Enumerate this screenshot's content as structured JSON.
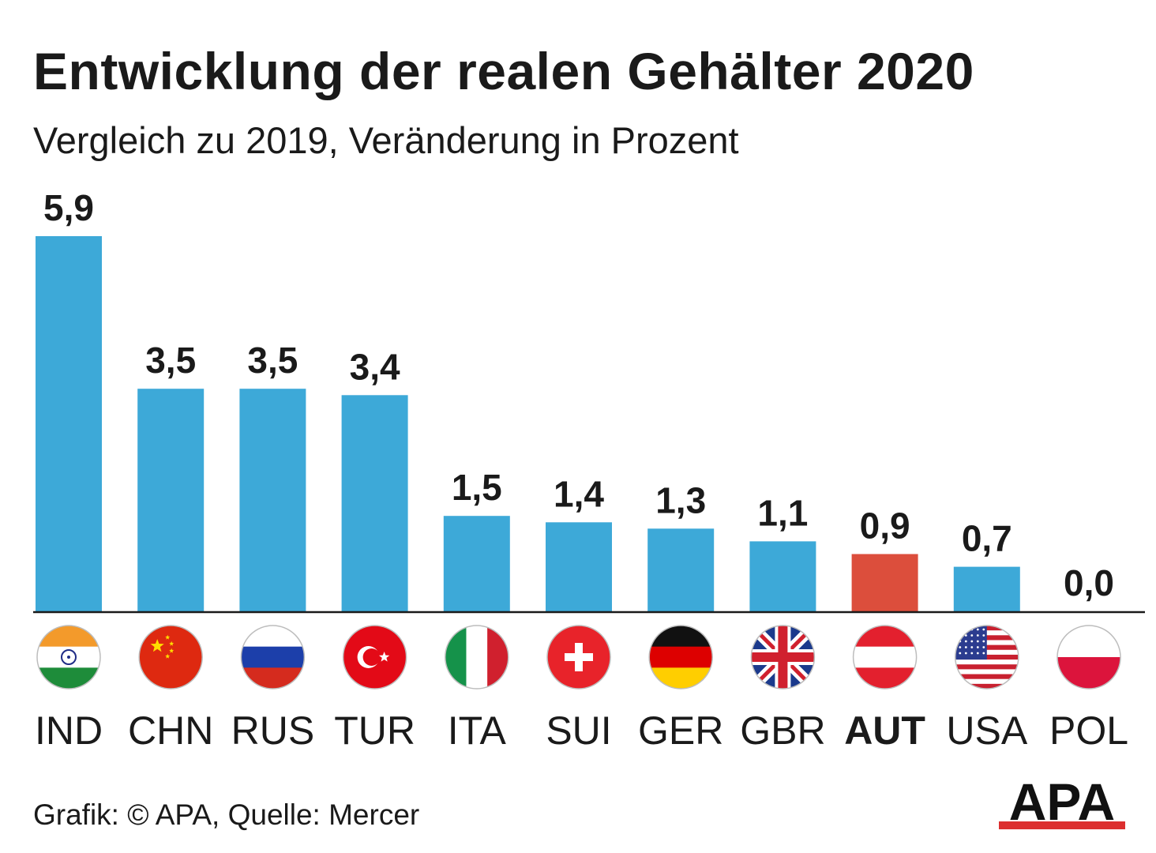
{
  "header": {
    "title": "Entwicklung der realen Gehälter 2020",
    "subtitle": "Vergleich zu 2019, Veränderung in Prozent"
  },
  "chart_data": {
    "type": "bar",
    "title": "Entwicklung der realen Gehälter 2020",
    "subtitle": "Vergleich zu 2019, Veränderung in Prozent",
    "xlabel": "",
    "ylabel": "",
    "ylim": [
      0,
      5.9
    ],
    "grid": false,
    "categories": [
      "IND",
      "CHN",
      "RUS",
      "TUR",
      "ITA",
      "SUI",
      "GER",
      "GBR",
      "AUT",
      "USA",
      "POL"
    ],
    "values": [
      5.9,
      3.5,
      3.5,
      3.4,
      1.5,
      1.4,
      1.3,
      1.1,
      0.9,
      0.7,
      0.0
    ],
    "value_labels": [
      "5,9",
      "3,5",
      "3,5",
      "3,4",
      "1,5",
      "1,4",
      "1,3",
      "1,1",
      "0,9",
      "0,7",
      "0,0"
    ],
    "highlight": "AUT",
    "flags": [
      "india-flag-icon",
      "china-flag-icon",
      "russia-flag-icon",
      "turkey-flag-icon",
      "italy-flag-icon",
      "switzerland-flag-icon",
      "germany-flag-icon",
      "uk-flag-icon",
      "austria-flag-icon",
      "usa-flag-icon",
      "poland-flag-icon"
    ]
  },
  "colors": {
    "bar": "#3DA9D8",
    "highlight": "#DC4E3C",
    "axis": "#1a1a1a",
    "text": "#1a1a1a"
  },
  "footer": {
    "source": "Grafik: © APA, Quelle: Mercer",
    "logo_text": "APA"
  }
}
